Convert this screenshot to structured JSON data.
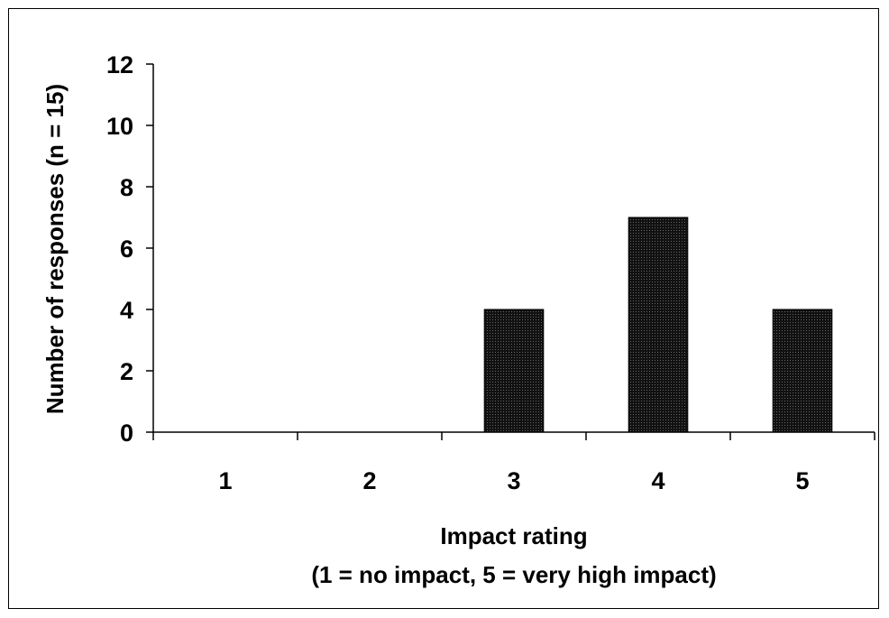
{
  "chart_data": {
    "type": "bar",
    "categories": [
      "1",
      "2",
      "3",
      "4",
      "5"
    ],
    "values": [
      0,
      0,
      4,
      7,
      4
    ],
    "title": "",
    "xlabel": "Impact rating",
    "xlabel_sub": "(1 = no impact, 5 = very high impact)",
    "ylabel": "Number of responses (n = 15)",
    "ylim": [
      0,
      12
    ],
    "yticks": [
      0,
      2,
      4,
      6,
      8,
      10,
      12
    ],
    "grid": false,
    "bar_color": "#111111",
    "bar_pattern": "fine dotted"
  }
}
